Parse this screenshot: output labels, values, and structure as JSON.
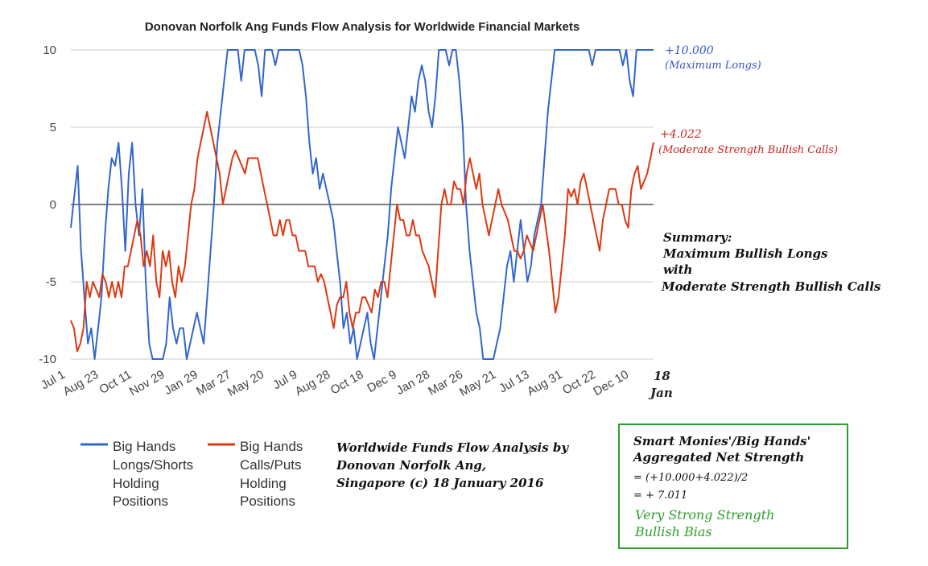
{
  "chart_data": {
    "type": "line",
    "title": "Donovan Norfolk Ang Funds Flow Analysis for Worldwide Financial Markets",
    "ylim": [
      -10,
      10
    ],
    "yticks": [
      "10",
      "5",
      "0",
      "-5",
      "-10"
    ],
    "xtick_labels": [
      "Jul 1",
      "Aug 23",
      "Oct 11",
      "Nov 29",
      "Jan 29",
      "Mar 27",
      "May 20",
      "Jul 9",
      "Aug 28",
      "Oct 18",
      "Dec 9",
      "Jan 28",
      "Mar 26",
      "May 21",
      "Jul 13",
      "Aug 31",
      "Oct 22",
      "Dec 10"
    ],
    "x_end_label_1": "18",
    "x_end_label_2": "Jan",
    "series": [
      {
        "name": "Big Hands Longs/Shorts Holding Positions",
        "color": "#3366cc",
        "values": [
          -1.5,
          0.5,
          2.5,
          -3,
          -6,
          -9,
          -8,
          -10,
          -8,
          -6,
          -2,
          1,
          3,
          2.5,
          4,
          1,
          -3,
          2,
          4,
          0,
          -2,
          1,
          -5,
          -9,
          -10,
          -10,
          -10,
          -10,
          -9,
          -6,
          -8,
          -9,
          -8,
          -8,
          -10,
          -9,
          -8,
          -7,
          -8,
          -9,
          -6,
          -3,
          0,
          4,
          6,
          8,
          10,
          10,
          10,
          10,
          8,
          10,
          10,
          10,
          10,
          9,
          7,
          10,
          10,
          10,
          9,
          10,
          10,
          10,
          10,
          10,
          10,
          10,
          9,
          7,
          4,
          2,
          3,
          1,
          2,
          1,
          0,
          -1,
          -3,
          -5,
          -8,
          -7,
          -9,
          -8,
          -10,
          -9,
          -8,
          -7,
          -9,
          -10,
          -8,
          -6,
          -4,
          -2,
          1,
          3,
          5,
          4,
          3,
          5,
          7,
          6,
          8,
          9,
          8,
          6,
          5,
          7,
          10,
          10,
          10,
          9,
          10,
          10,
          8,
          5,
          0,
          -3,
          -5,
          -7,
          -8,
          -10,
          -10,
          -10,
          -10,
          -9,
          -8,
          -6,
          -4,
          -3,
          -5,
          -3,
          -1,
          -3,
          -5,
          -4,
          -2,
          -1,
          0,
          3,
          6,
          8,
          10,
          10,
          10,
          10,
          10,
          10,
          10,
          10,
          10,
          10,
          10,
          9,
          10,
          10,
          10,
          10,
          10,
          10,
          10,
          10,
          9,
          10,
          8,
          7,
          10,
          10,
          10,
          10,
          10,
          10
        ]
      },
      {
        "name": "Big Hands Calls/Puts Holding Positions",
        "color": "#dc3912",
        "values": [
          -7.5,
          -8,
          -9.5,
          -9,
          -8,
          -5,
          -6,
          -5,
          -5.5,
          -6,
          -4.5,
          -5,
          -6,
          -5,
          -6,
          -5,
          -6,
          -4,
          -4,
          -3,
          -2,
          -1,
          -2,
          -4,
          -3,
          -4,
          -2,
          -5,
          -6,
          -3,
          -4,
          -3,
          -5,
          -6,
          -4,
          -5,
          -4,
          -2,
          0,
          1,
          3,
          4,
          5,
          6,
          5,
          4,
          3,
          2,
          0,
          1,
          2,
          3,
          3.5,
          3,
          2.5,
          2,
          3,
          3,
          3,
          3,
          2,
          1,
          0,
          -1,
          -2,
          -2,
          -1,
          -2,
          -1,
          -1,
          -2,
          -2,
          -3,
          -3,
          -3,
          -4,
          -4,
          -4,
          -5,
          -4.5,
          -5,
          -6,
          -7,
          -8,
          -6.5,
          -6,
          -6,
          -5,
          -7,
          -8,
          -7,
          -7,
          -6,
          -6,
          -6.5,
          -7,
          -5.5,
          -6,
          -5,
          -5,
          -6,
          -4,
          -2,
          0,
          -1,
          -1,
          -2,
          -2,
          -1,
          -2,
          -2,
          -3,
          -3.5,
          -4,
          -5,
          -6,
          -3,
          0,
          1,
          0,
          0,
          1.5,
          1,
          1,
          0,
          2,
          3,
          2,
          1,
          2,
          0,
          -1,
          -2,
          -1,
          0,
          1,
          0,
          -0.5,
          -1,
          -2,
          -3,
          -3,
          -3.5,
          -3,
          -2,
          -2.5,
          -3,
          -2,
          -1,
          0,
          -1.5,
          -3,
          -5,
          -7,
          -6,
          -4,
          -2,
          1,
          0.5,
          1,
          0,
          1.5,
          2,
          1,
          0,
          -1,
          -2,
          -3,
          -1,
          0,
          1,
          1,
          1,
          0,
          0,
          -1,
          -1.5,
          1,
          2,
          2.5,
          1,
          1.5,
          2,
          3,
          4.022
        ]
      }
    ],
    "annotations": {
      "blue_value": "+10.000",
      "blue_desc": "(Maximum Longs)",
      "red_value": "+4.022",
      "red_desc": "(Moderate Strength Bullish Calls)",
      "summary_1": "Summary:",
      "summary_2": "Maximum Bullish Longs",
      "summary_3": "with",
      "summary_4": "Moderate Strength Bullish Calls",
      "credit_1": "Worldwide Funds Flow Analysis by",
      "credit_2": "Donovan Norfolk Ang,",
      "credit_3": "Singapore (c) 18 January 2016"
    },
    "legend": [
      {
        "line1": "Big Hands",
        "line2": "Longs/Shorts",
        "line3": "Holding",
        "line4": "Positions"
      },
      {
        "line1": "Big Hands",
        "line2": "Calls/Puts",
        "line3": "Holding",
        "line4": "Positions"
      }
    ],
    "box": {
      "line1": "Smart Monies'/Big Hands'",
      "line2": "Aggregated Net Strength",
      "line3": "= (+10.000+4.022)/2",
      "line4": "= + 7.011",
      "line5": "Very Strong Strength",
      "line6": "Bullish Bias",
      "border_color": "#2ca02c",
      "highlight_color": "#2ca02c"
    }
  }
}
